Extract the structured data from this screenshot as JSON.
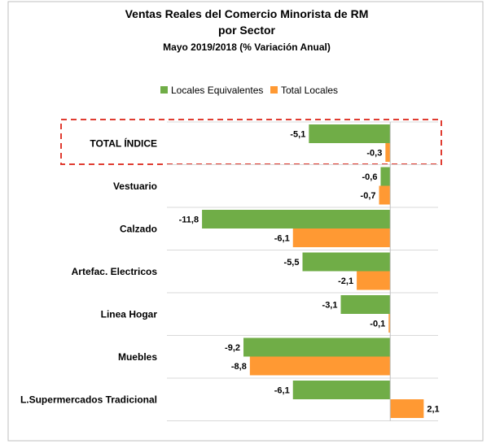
{
  "chart_data": {
    "type": "bar",
    "orientation": "horizontal",
    "title_lines": [
      "Ventas Reales del Comercio Minorista de RM",
      "por Sector"
    ],
    "subtitle": "Mayo 2019/2018 (% Variación Anual)",
    "categories": [
      "TOTAL ÍNDICE",
      "Vestuario",
      "Calzado",
      "Artefac. Electricos",
      "Linea Hogar",
      "Muebles",
      "L.Supermercados Tradicional"
    ],
    "series": [
      {
        "name": "Locales Equivalentes",
        "color": "#70AD47",
        "values": [
          -5.1,
          -0.6,
          -11.8,
          -5.5,
          -3.1,
          -9.2,
          -6.1
        ],
        "labels": [
          "-5,1",
          "-0,6",
          "-11,8",
          "-5,5",
          "-3,1",
          "-9,2",
          "-6,1"
        ]
      },
      {
        "name": "Total Locales",
        "color": "#FF9933",
        "values": [
          -0.3,
          -0.7,
          -6.1,
          -2.1,
          -0.1,
          -8.8,
          2.1
        ],
        "labels": [
          "-0,3",
          "-0,7",
          "-6,1",
          "-2,1",
          "-0,1",
          "-8,8",
          "2,1"
        ]
      }
    ],
    "xlim": [
      -14,
      3
    ],
    "legend_position": "top",
    "grid": false,
    "highlight": {
      "category": "TOTAL ÍNDICE",
      "style": "dashed-box",
      "color": "#E03C31"
    },
    "gridline_color": "#D9D9D9",
    "frame_color": "#BFBFBF"
  }
}
